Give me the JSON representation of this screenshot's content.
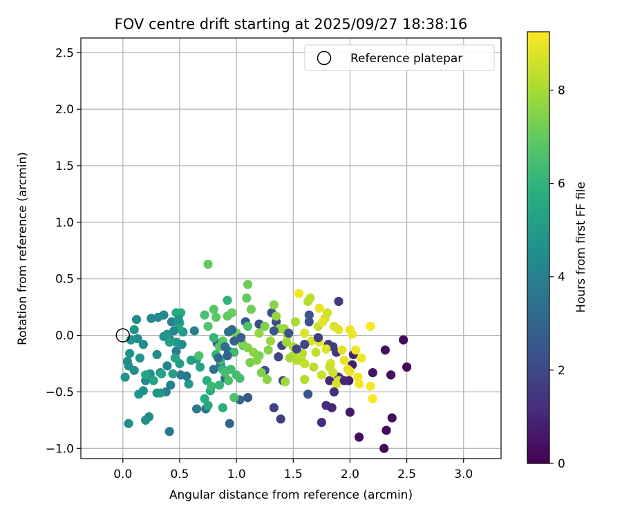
{
  "chart_data": {
    "type": "scatter",
    "title": "FOV centre drift starting at 2025/09/27 18:38:16",
    "xlabel": "Angular distance from reference (arcmin)",
    "ylabel": "Rotation from reference (arcmin)",
    "xlim": [
      -0.37,
      3.33
    ],
    "ylim": [
      -1.09,
      2.63
    ],
    "xticks": [
      0.0,
      0.5,
      1.0,
      1.5,
      2.0,
      2.5,
      3.0
    ],
    "xtick_labels": [
      "0.0",
      "0.5",
      "1.0",
      "1.5",
      "2.0",
      "2.5",
      "3.0"
    ],
    "yticks": [
      -1.0,
      -0.5,
      0.0,
      0.5,
      1.0,
      1.5,
      2.0,
      2.5
    ],
    "ytick_labels": [
      "−1.0",
      "−0.5",
      "0.0",
      "0.5",
      "1.0",
      "1.5",
      "2.0",
      "2.5"
    ],
    "grid": true,
    "legend": {
      "placement": "top-right",
      "entries": [
        "Reference platepar"
      ]
    },
    "colormap": "viridis",
    "colorbar": {
      "label": "Hours from first FF file",
      "range": [
        0,
        9.25
      ],
      "ticks": [
        0,
        2,
        4,
        6,
        8
      ],
      "tick_labels": [
        "0",
        "2",
        "4",
        "6",
        "8"
      ]
    },
    "reference_point": {
      "x": 0.0,
      "y": 0.0
    },
    "points": [
      [
        2.3,
        -1.0,
        0.15
      ],
      [
        2.32,
        -0.84,
        0.2
      ],
      [
        2.37,
        -0.73,
        0.25
      ],
      [
        2.08,
        -0.9,
        0.3
      ],
      [
        2.5,
        -0.28,
        0.2
      ],
      [
        2.47,
        -0.04,
        0.3
      ],
      [
        2.36,
        -0.35,
        0.4
      ],
      [
        2.31,
        -0.13,
        0.45
      ],
      [
        2.2,
        -0.33,
        0.5
      ],
      [
        2.0,
        -0.68,
        0.6
      ],
      [
        1.99,
        -0.4,
        0.7
      ],
      [
        2.02,
        -0.26,
        0.75
      ],
      [
        2.03,
        -0.17,
        0.9
      ],
      [
        1.82,
        -0.4,
        1.0
      ],
      [
        1.84,
        -0.64,
        1.05
      ],
      [
        1.79,
        -0.62,
        1.1
      ],
      [
        1.75,
        -0.77,
        1.2
      ],
      [
        1.9,
        -0.37,
        1.3
      ],
      [
        1.92,
        -0.39,
        1.35
      ],
      [
        1.88,
        -0.15,
        1.45
      ],
      [
        1.9,
        0.3,
        1.5
      ],
      [
        1.81,
        -0.08,
        1.55
      ],
      [
        1.85,
        -0.1,
        1.6
      ],
      [
        1.39,
        -0.74,
        1.7
      ],
      [
        1.33,
        -0.64,
        1.8
      ],
      [
        1.41,
        -0.4,
        1.85
      ],
      [
        1.37,
        -0.19,
        1.9
      ],
      [
        1.4,
        -0.09,
        2.0
      ],
      [
        1.35,
        0.12,
        2.1
      ],
      [
        1.31,
        0.2,
        2.15
      ],
      [
        1.2,
        0.1,
        2.2
      ],
      [
        1.25,
        -0.31,
        2.3
      ],
      [
        1.64,
        0.18,
        2.4
      ],
      [
        1.63,
        -0.52,
        2.45
      ],
      [
        1.1,
        -0.55,
        2.5
      ],
      [
        1.08,
        0.12,
        2.6
      ],
      [
        0.94,
        -0.78,
        3.0
      ],
      [
        1.03,
        -0.57,
        3.1
      ],
      [
        0.9,
        -0.38,
        3.2
      ],
      [
        0.86,
        -0.25,
        3.3
      ],
      [
        0.93,
        -0.14,
        3.4
      ],
      [
        0.83,
        -0.07,
        3.5
      ],
      [
        0.73,
        -0.65,
        3.6
      ],
      [
        0.65,
        -0.65,
        3.7
      ],
      [
        0.51,
        -0.35,
        3.8
      ],
      [
        0.47,
        -0.14,
        3.9
      ],
      [
        0.42,
        -0.44,
        4.0
      ],
      [
        0.41,
        -0.85,
        3.7
      ],
      [
        0.38,
        -0.5,
        3.9
      ],
      [
        0.41,
        -0.03,
        4.1
      ],
      [
        0.43,
        0.12,
        4.0
      ],
      [
        0.36,
        0.18,
        4.2
      ],
      [
        0.31,
        0.16,
        4.3
      ],
      [
        0.25,
        0.15,
        4.3
      ],
      [
        0.33,
        -0.33,
        4.4
      ],
      [
        0.3,
        -0.17,
        4.35
      ],
      [
        0.23,
        -0.36,
        4.4
      ],
      [
        0.2,
        -0.4,
        4.3
      ],
      [
        0.18,
        -0.08,
        4.5
      ],
      [
        0.13,
        -0.03,
        4.6
      ],
      [
        0.12,
        0.14,
        4.4
      ],
      [
        0.1,
        -0.31,
        4.6
      ],
      [
        0.05,
        -0.27,
        4.6
      ],
      [
        0.04,
        -0.23,
        4.6
      ],
      [
        0.02,
        -0.37,
        4.65
      ],
      [
        0.06,
        -0.16,
        4.7
      ],
      [
        0.07,
        -0.04,
        4.7
      ],
      [
        0.1,
        0.05,
        4.7
      ],
      [
        0.15,
        -0.2,
        4.8
      ],
      [
        0.14,
        -0.52,
        4.75
      ],
      [
        0.05,
        -0.78,
        4.5
      ],
      [
        0.2,
        -0.75,
        4.5
      ],
      [
        0.23,
        -0.72,
        4.5
      ],
      [
        0.18,
        -0.49,
        4.6
      ],
      [
        0.24,
        -0.34,
        4.7
      ],
      [
        0.3,
        -0.51,
        4.8
      ],
      [
        0.33,
        -0.51,
        4.9
      ],
      [
        0.36,
        -0.01,
        4.8
      ],
      [
        0.39,
        0.01,
        4.9
      ],
      [
        0.44,
        -0.34,
        4.9
      ],
      [
        0.47,
        -0.06,
        5.0
      ],
      [
        0.5,
        -0.25,
        5.1
      ],
      [
        0.53,
        0.03,
        5.0
      ],
      [
        0.58,
        -0.43,
        4.9
      ],
      [
        0.6,
        -0.22,
        5.2
      ],
      [
        0.65,
        -0.21,
        5.2
      ],
      [
        0.68,
        -0.28,
        5.3
      ],
      [
        0.47,
        0.2,
        5.4
      ],
      [
        0.49,
        0.07,
        5.5
      ],
      [
        0.5,
        0.11,
        5.4
      ],
      [
        0.51,
        0.2,
        5.6
      ],
      [
        0.46,
        -0.2,
        5.4
      ],
      [
        0.34,
        -0.34,
        5.5
      ],
      [
        0.27,
        -0.4,
        5.4
      ],
      [
        0.2,
        -0.35,
        5.4
      ],
      [
        0.41,
        -0.06,
        5.3
      ],
      [
        0.44,
        -0.34,
        5.2
      ],
      [
        0.75,
        -0.62,
        5.6
      ],
      [
        0.77,
        -0.49,
        5.7
      ],
      [
        0.74,
        -0.4,
        5.8
      ],
      [
        0.72,
        -0.56,
        5.7
      ],
      [
        0.88,
        -0.64,
        5.8
      ],
      [
        0.92,
        0.31,
        5.9
      ],
      [
        0.88,
        -0.3,
        6.0
      ],
      [
        0.82,
        -0.17,
        6.0
      ],
      [
        0.8,
        -0.02,
        6.1
      ],
      [
        0.78,
        -0.45,
        6.2
      ],
      [
        0.85,
        -0.44,
        6.1
      ],
      [
        0.95,
        -0.3,
        6.3
      ],
      [
        0.98,
        -0.15,
        6.3
      ],
      [
        1.0,
        -0.35,
        6.4
      ],
      [
        1.03,
        -0.38,
        6.4
      ],
      [
        1.06,
        -0.09,
        6.5
      ],
      [
        1.1,
        0.08,
        6.6
      ],
      [
        0.72,
        0.18,
        6.5
      ],
      [
        0.67,
        -0.18,
        6.6
      ],
      [
        0.75,
        0.08,
        6.7
      ],
      [
        0.8,
        0.23,
        6.8
      ],
      [
        0.82,
        0.16,
        6.9
      ],
      [
        0.75,
        0.63,
        7.0
      ],
      [
        1.09,
        0.33,
        7.0
      ],
      [
        1.1,
        0.45,
        7.2
      ],
      [
        1.13,
        0.23,
        7.2
      ],
      [
        1.12,
        -0.24,
        7.3
      ],
      [
        1.2,
        -0.18,
        7.3
      ],
      [
        1.22,
        -0.33,
        7.4
      ],
      [
        1.25,
        0.08,
        7.4
      ],
      [
        1.28,
        -0.13,
        7.5
      ],
      [
        1.18,
        -0.22,
        7.5
      ],
      [
        1.27,
        -0.39,
        7.6
      ],
      [
        1.33,
        0.27,
        7.6
      ],
      [
        1.35,
        0.17,
        7.7
      ],
      [
        1.38,
        0.06,
        7.7
      ],
      [
        1.42,
        0.06,
        7.8
      ],
      [
        1.44,
        -0.06,
        7.8
      ],
      [
        1.47,
        -0.2,
        7.9
      ],
      [
        1.43,
        -0.41,
        7.9
      ],
      [
        1.52,
        0.12,
        8.0
      ],
      [
        1.5,
        -0.18,
        8.0
      ],
      [
        1.55,
        -0.22,
        8.1
      ],
      [
        1.58,
        -0.16,
        8.1
      ],
      [
        1.6,
        -0.39,
        8.2
      ],
      [
        1.63,
        0.3,
        8.2
      ],
      [
        1.65,
        0.33,
        8.3
      ],
      [
        1.68,
        -0.28,
        8.3
      ],
      [
        1.7,
        -0.15,
        8.4
      ],
      [
        1.72,
        0.08,
        8.5
      ],
      [
        1.75,
        -0.35,
        8.5
      ],
      [
        1.78,
        0.15,
        8.6
      ],
      [
        1.8,
        0.2,
        8.6
      ],
      [
        1.83,
        -0.25,
        8.7
      ],
      [
        1.86,
        0.08,
        8.7
      ],
      [
        1.88,
        -0.43,
        8.8
      ],
      [
        1.9,
        0.05,
        8.8
      ],
      [
        1.93,
        -0.13,
        8.9
      ],
      [
        1.98,
        -0.3,
        8.9
      ],
      [
        2.0,
        0.05,
        9.0
      ],
      [
        2.02,
        0.01,
        9.0
      ],
      [
        2.05,
        -0.13,
        9.05
      ],
      [
        2.07,
        -0.37,
        9.1
      ],
      [
        2.1,
        -0.2,
        9.1
      ],
      [
        2.18,
        -0.45,
        9.15
      ],
      [
        2.2,
        -0.56,
        9.2
      ],
      [
        2.18,
        0.08,
        9.2
      ],
      [
        1.55,
        0.37,
        9.1
      ],
      [
        1.73,
        0.24,
        9.0
      ],
      [
        1.76,
        0.12,
        8.95
      ],
      [
        1.6,
        0.02,
        8.8
      ],
      [
        1.66,
        -0.05,
        8.7
      ],
      [
        1.73,
        -0.06,
        8.9
      ],
      [
        1.79,
        -0.12,
        8.8
      ],
      [
        2.08,
        -0.43,
        9.1
      ],
      [
        2.0,
        -0.32,
        9.0
      ],
      [
        1.95,
        -0.22,
        8.9
      ],
      [
        1.9,
        -0.4,
        8.7
      ],
      [
        1.85,
        -0.33,
        8.6
      ],
      [
        1.82,
        -0.28,
        8.5
      ],
      [
        1.6,
        -0.25,
        8.4
      ],
      [
        1.57,
        -0.2,
        8.3
      ],
      [
        1.53,
        -0.22,
        8.2
      ],
      [
        1.5,
        -0.1,
        8.1
      ],
      [
        1.45,
        0.0,
        8.0
      ],
      [
        1.42,
        0.05,
        7.9
      ],
      [
        1.3,
        -0.05,
        7.8
      ],
      [
        1.2,
        0.02,
        7.7
      ],
      [
        1.15,
        -0.15,
        7.6
      ],
      [
        1.1,
        -0.11,
        7.5
      ],
      [
        1.05,
        -0.07,
        7.4
      ],
      [
        1.0,
        0.02,
        7.2
      ],
      [
        0.96,
        0.2,
        7.1
      ],
      [
        0.92,
        0.17,
        7.0
      ],
      [
        0.88,
        -0.05,
        6.9
      ],
      [
        0.85,
        -0.1,
        6.8
      ],
      [
        0.98,
        -0.55,
        6.6
      ],
      [
        0.93,
        -0.4,
        6.5
      ],
      [
        0.9,
        -0.33,
        6.4
      ],
      [
        0.86,
        -0.22,
        6.3
      ],
      [
        1.33,
        0.04,
        2.5
      ],
      [
        1.46,
        0.02,
        2.3
      ],
      [
        1.53,
        -0.12,
        2.0
      ],
      [
        1.6,
        -0.08,
        1.9
      ],
      [
        1.64,
        0.12,
        2.4
      ],
      [
        1.72,
        -0.02,
        1.6
      ],
      [
        1.95,
        -0.4,
        1.0
      ],
      [
        1.86,
        -0.5,
        1.2
      ],
      [
        0.98,
        -0.05,
        2.8
      ],
      [
        0.92,
        -0.18,
        3.0
      ],
      [
        0.96,
        0.05,
        2.9
      ],
      [
        1.04,
        -0.02,
        2.7
      ],
      [
        0.93,
        0.03,
        3.4
      ],
      [
        0.9,
        -0.1,
        3.3
      ],
      [
        0.84,
        -0.2,
        3.2
      ],
      [
        0.8,
        -0.3,
        3.5
      ],
      [
        0.63,
        0.04,
        4.0
      ],
      [
        0.56,
        -0.36,
        3.8
      ],
      [
        0.52,
        -0.08,
        4.6
      ],
      [
        0.49,
        0.14,
        4.8
      ],
      [
        0.45,
        0.04,
        4.3
      ],
      [
        0.39,
        -0.27,
        4.2
      ]
    ]
  }
}
